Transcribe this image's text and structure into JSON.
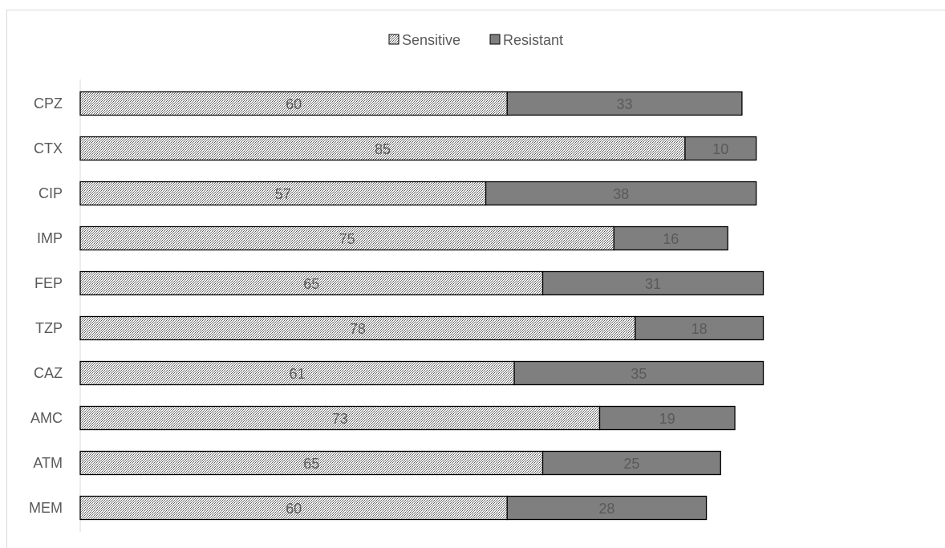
{
  "chart_data": {
    "type": "bar",
    "orientation": "horizontal",
    "stacked": true,
    "categories": [
      "CPZ",
      "CTX",
      "CIP",
      "IMP",
      "FEP",
      "TZP",
      "CAZ",
      "AMC",
      "ATM",
      "MEM"
    ],
    "series": [
      {
        "name": "Sensitive",
        "values": [
          60,
          85,
          57,
          75,
          65,
          78,
          61,
          73,
          65,
          60
        ],
        "fill": "hatched",
        "color": "#7f7f7f"
      },
      {
        "name": "Resistant",
        "values": [
          33,
          10,
          38,
          16,
          31,
          18,
          35,
          19,
          25,
          28
        ],
        "fill": "solid",
        "color": "#7f7f7f"
      }
    ],
    "title": "",
    "xlabel": "",
    "ylabel": "",
    "xlim": [
      0,
      100
    ],
    "legend": "top",
    "grid": false,
    "data_labels": true
  },
  "colors": {
    "bar_fill": "#7f7f7f",
    "hatch_light": "#ffffff",
    "hatch_dark": "#595959",
    "outline": "#000000",
    "text": "#595959",
    "axis": "#d9d9d9"
  }
}
